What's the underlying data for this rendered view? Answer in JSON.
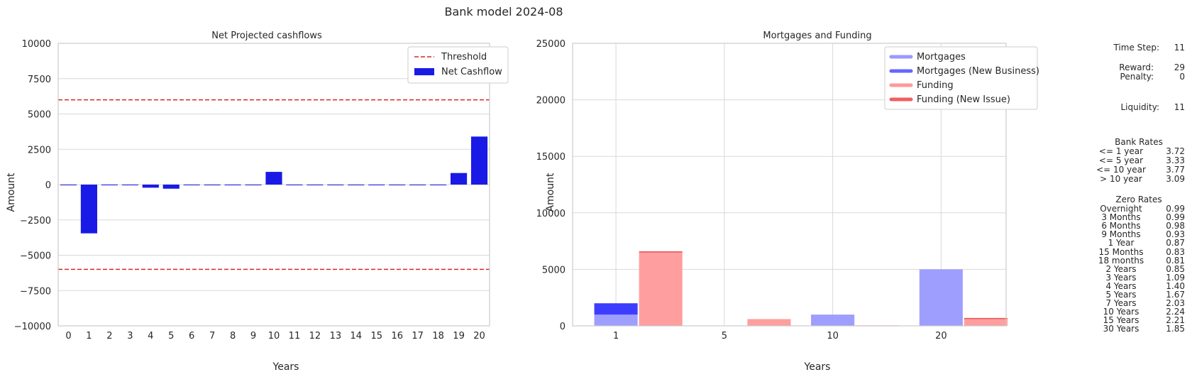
{
  "suptitle": "Bank model 2024-08",
  "colors": {
    "net": "#1a1ae6",
    "threshold": "#d62728",
    "mortgage": "#9999ff",
    "mortgage_new": "#3333ff",
    "funding": "#ff9999",
    "funding_new": "#e64d4d",
    "grid": "#d9d9d9",
    "spine": "#cccccc"
  },
  "chart_data": [
    {
      "type": "bar",
      "title": "Net Projected cashflows",
      "xlabel": "Years",
      "ylabel": "Amount",
      "ylim": [
        -10000,
        10000
      ],
      "yticks": [
        10000,
        7500,
        5000,
        2500,
        0,
        -2500,
        -5000,
        -7500,
        -10000
      ],
      "ytick_labels": [
        "10000",
        "7500",
        "5000",
        "2500",
        "0",
        "−2500",
        "−5000",
        "−7500",
        "−10000"
      ],
      "categories": [
        "0",
        "1",
        "2",
        "3",
        "4",
        "5",
        "6",
        "7",
        "8",
        "9",
        "10",
        "11",
        "12",
        "13",
        "14",
        "15",
        "16",
        "17",
        "18",
        "19",
        "20"
      ],
      "values": [
        0,
        -3450,
        0,
        0,
        -220,
        -290,
        0,
        0,
        0,
        0,
        900,
        0,
        0,
        0,
        0,
        0,
        0,
        0,
        0,
        820,
        3400
      ],
      "thresholds": [
        6000,
        -6000
      ],
      "legend": [
        {
          "label": "Threshold",
          "kind": "dashed-line"
        },
        {
          "label": "Net Cashflow",
          "kind": "patch"
        }
      ],
      "legend_position": "top-right"
    },
    {
      "type": "bar",
      "title": "Mortgages and Funding",
      "xlabel": "Years",
      "ylabel": "Amount",
      "ylim": [
        0,
        25000
      ],
      "yticks": [
        25000,
        20000,
        15000,
        10000,
        5000,
        0
      ],
      "ytick_labels": [
        "25000",
        "20000",
        "15000",
        "10000",
        "5000",
        "0"
      ],
      "categories": [
        "1",
        "5",
        "10",
        "20"
      ],
      "series": [
        {
          "name": "Mortgages",
          "values": [
            1000,
            0,
            1000,
            5000
          ]
        },
        {
          "name": "Mortgages (New Business)",
          "values": [
            1000,
            0,
            0,
            0
          ]
        },
        {
          "name": "Funding",
          "values": [
            6500,
            600,
            50,
            600
          ]
        },
        {
          "name": "Funding (New Issue)",
          "values": [
            100,
            0,
            0,
            100
          ]
        }
      ],
      "legend": [
        "Mortgages",
        "Mortgages (New Business)",
        "Funding",
        "Funding (New Issue)"
      ],
      "legend_position": "top-right"
    }
  ],
  "side_panel": {
    "time_step": {
      "label": "Time Step:",
      "value": "11"
    },
    "reward": {
      "label": "Reward:",
      "value": "29"
    },
    "penalty": {
      "label": "Penalty:",
      "value": "0"
    },
    "liquidity": {
      "label": "Liquidity:",
      "value": "11"
    },
    "bank_rates_title": "Bank Rates",
    "bank_rates": [
      {
        "label": "<= 1 year",
        "value": "3.72"
      },
      {
        "label": "<= 5 year",
        "value": "3.33"
      },
      {
        "label": "<= 10 year",
        "value": "3.77"
      },
      {
        "label": "> 10 year",
        "value": "3.09"
      }
    ],
    "zero_rates_title": "Zero Rates",
    "zero_rates": [
      {
        "label": "Overnight",
        "value": "0.99"
      },
      {
        "label": "3 Months",
        "value": "0.99"
      },
      {
        "label": "6 Months",
        "value": "0.98"
      },
      {
        "label": "9 Months",
        "value": "0.93"
      },
      {
        "label": "1 Year",
        "value": "0.87"
      },
      {
        "label": "15 Months",
        "value": "0.83"
      },
      {
        "label": "18 months",
        "value": "0.81"
      },
      {
        "label": "2 Years",
        "value": "0.85"
      },
      {
        "label": "3 Years",
        "value": "1.09"
      },
      {
        "label": "4 Years",
        "value": "1.40"
      },
      {
        "label": "5 Years",
        "value": "1.67"
      },
      {
        "label": "7 Years",
        "value": "2.03"
      },
      {
        "label": "10 Years",
        "value": "2.24"
      },
      {
        "label": "15 Years",
        "value": "2.21"
      },
      {
        "label": "30 Years",
        "value": "1.85"
      }
    ]
  }
}
